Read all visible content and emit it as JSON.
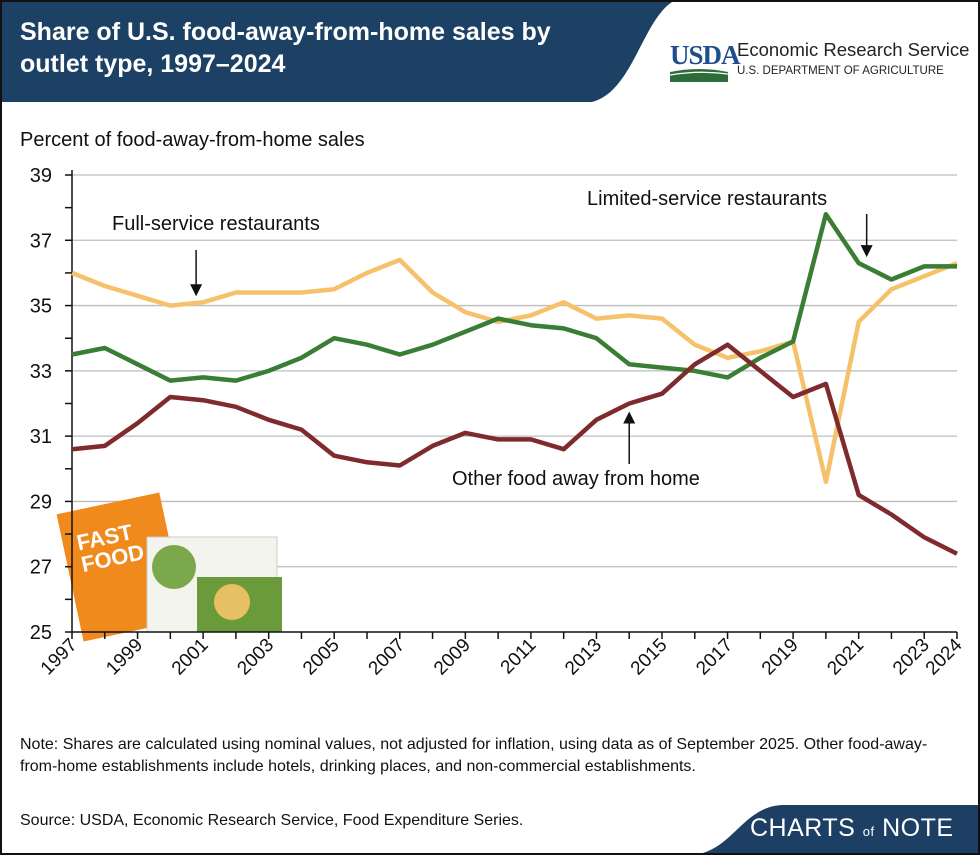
{
  "header": {
    "title": "Share of U.S. food-away-from-home sales by outlet type, 1997–2024",
    "logo_text": "USDA",
    "agency": "Economic Research Service",
    "department": "U.S. DEPARTMENT OF AGRICULTURE"
  },
  "footer": {
    "note": "Note: Shares are calculated using nominal values, not adjusted for inflation, using data as of September 2025. Other food-away-from-home establishments include hotels, drinking places, and non-commercial establishments.",
    "source": "Source: USDA, Economic Research Service, Food Expenditure Series.",
    "brand_left": "CHARTS",
    "brand_of": "of",
    "brand_right": "NOTE"
  },
  "colors": {
    "header_bg": "#1d4165",
    "full_service": "#f5c26b",
    "limited_service": "#3a7d35",
    "other": "#7f2b2e",
    "grid": "#bdbdbd"
  },
  "chart_data": {
    "type": "line",
    "title": "Share of U.S. food-away-from-home sales by outlet type, 1997–2024",
    "ylabel": "Percent of food-away-from-home sales",
    "xlabel": "",
    "ylim": [
      25,
      39
    ],
    "yticks": [
      25,
      27,
      29,
      31,
      33,
      35,
      37,
      39
    ],
    "xticks": [
      1997,
      1999,
      2001,
      2003,
      2005,
      2007,
      2009,
      2011,
      2013,
      2015,
      2017,
      2019,
      2021,
      2023,
      2024
    ],
    "grid": true,
    "x": [
      1997,
      1998,
      1999,
      2000,
      2001,
      2002,
      2003,
      2004,
      2005,
      2006,
      2007,
      2008,
      2009,
      2010,
      2011,
      2012,
      2013,
      2014,
      2015,
      2016,
      2017,
      2018,
      2019,
      2020,
      2021,
      2022,
      2023,
      2024
    ],
    "series": [
      {
        "name": "Full-service restaurants",
        "color": "#f5c26b",
        "values": [
          36.0,
          35.6,
          35.3,
          35.0,
          35.1,
          35.4,
          35.4,
          35.4,
          35.5,
          36.0,
          36.4,
          35.4,
          34.8,
          34.5,
          34.7,
          35.1,
          34.6,
          34.7,
          34.6,
          33.8,
          33.4,
          33.6,
          33.9,
          29.6,
          34.5,
          35.5,
          35.9,
          36.3
        ]
      },
      {
        "name": "Limited-service restaurants",
        "color": "#3a7d35",
        "values": [
          33.5,
          33.7,
          33.2,
          32.7,
          32.8,
          32.7,
          33.0,
          33.4,
          34.0,
          33.8,
          33.5,
          33.8,
          34.2,
          34.6,
          34.4,
          34.3,
          34.0,
          33.2,
          33.1,
          33.0,
          32.8,
          33.4,
          33.9,
          37.8,
          36.3,
          35.8,
          36.2,
          36.2
        ]
      },
      {
        "name": "Other food away from home",
        "color": "#7f2b2e",
        "values": [
          30.6,
          30.7,
          31.4,
          32.2,
          32.1,
          31.9,
          31.5,
          31.2,
          30.4,
          30.2,
          30.1,
          30.7,
          31.1,
          30.9,
          30.9,
          30.6,
          31.5,
          32.0,
          32.3,
          33.2,
          33.8,
          33.0,
          32.2,
          32.6,
          29.2,
          28.6,
          27.9,
          27.4
        ]
      }
    ],
    "annotations": [
      {
        "text": "Full-service restaurants",
        "series": 0,
        "year": 2001
      },
      {
        "text": "Limited-service restaurants",
        "series": 1,
        "year": 2021
      },
      {
        "text": "Other food away from home",
        "series": 2,
        "year": 2014
      }
    ]
  }
}
